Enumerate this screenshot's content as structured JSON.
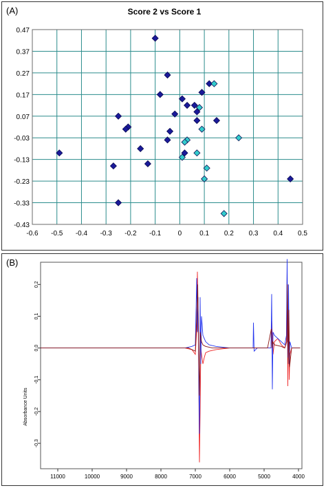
{
  "colors": {
    "grid": "#2a8c8c",
    "frame": "#6a6a6a",
    "group1_fill": "#1a1a9a",
    "group2_fill": "#33cccc",
    "spectrum_blue": "#2233ee",
    "spectrum_red": "#ee2222",
    "spectrum_darkred": "#881111"
  },
  "panels": {
    "a_label": "(A)",
    "b_label": "(B)"
  },
  "chart_data": [
    {
      "type": "scatter",
      "title": "Score 2 vs Score 1",
      "xlabel": "",
      "ylabel": "",
      "xlim": [
        -0.6,
        0.5
      ],
      "ylim": [
        -0.43,
        0.47
      ],
      "grid": true,
      "x_ticks": [
        "-0.6",
        "-0.5",
        "-0.4",
        "-0.3",
        "-0.2",
        "-0.1",
        "0",
        "0.1",
        "0.2",
        "0.3",
        "0.4",
        "0.5"
      ],
      "y_ticks": [
        "0.47",
        "0.37",
        "0.27",
        "0.17",
        "0.07",
        "-0.03",
        "-0.13",
        "-0.23",
        "-0.33",
        "-0.43"
      ],
      "series": [
        {
          "group": "dark",
          "points": [
            [
              -0.1,
              0.43
            ],
            [
              -0.05,
              0.26
            ],
            [
              -0.08,
              0.17
            ],
            [
              0.12,
              0.22
            ],
            [
              0.09,
              0.18
            ],
            [
              0.01,
              0.15
            ],
            [
              0.03,
              0.12
            ],
            [
              0.06,
              0.12
            ],
            [
              -0.02,
              0.08
            ],
            [
              0.07,
              0.09
            ],
            [
              0.07,
              0.05
            ],
            [
              0.15,
              0.05
            ],
            [
              -0.25,
              0.07
            ],
            [
              -0.21,
              0.02
            ],
            [
              -0.22,
              0.01
            ],
            [
              -0.04,
              0.0
            ],
            [
              -0.05,
              -0.04
            ],
            [
              -0.16,
              -0.08
            ],
            [
              0.02,
              -0.1
            ],
            [
              -0.49,
              -0.1
            ],
            [
              -0.13,
              -0.15
            ],
            [
              -0.27,
              -0.16
            ],
            [
              -0.25,
              -0.33
            ],
            [
              0.45,
              -0.22
            ]
          ]
        },
        {
          "group": "light",
          "points": [
            [
              0.14,
              0.22
            ],
            [
              0.08,
              0.11
            ],
            [
              0.09,
              0.01
            ],
            [
              0.24,
              -0.03
            ],
            [
              0.03,
              -0.04
            ],
            [
              0.02,
              -0.05
            ],
            [
              0.07,
              -0.1
            ],
            [
              0.01,
              -0.12
            ],
            [
              0.11,
              -0.17
            ],
            [
              0.1,
              -0.22
            ],
            [
              0.18,
              -0.38
            ]
          ]
        }
      ]
    },
    {
      "type": "line",
      "title": "",
      "xlabel": "",
      "ylabel": "Absorbance Units",
      "xlim": [
        11500,
        3900
      ],
      "ylim": [
        -0.38,
        0.27
      ],
      "x_ticks": [
        11000,
        10000,
        9000,
        8000,
        7000,
        6000,
        5000,
        4000
      ],
      "y_ticks": [
        0.2,
        0.1,
        0.0,
        -0.1,
        -0.2,
        -0.3
      ],
      "y_tick_labels": [
        "0.2",
        "0.1",
        "0.0",
        "-0.1",
        "-0.2",
        "-0.3"
      ],
      "series": [
        {
          "color_key": "spectrum_red",
          "x": [
            11500,
            8000,
            7300,
            7100,
            7000,
            6960,
            6940,
            6920,
            6900,
            6880,
            6860,
            6840,
            6820,
            6780,
            6740,
            6700,
            6600,
            6400,
            6000,
            5400,
            5300,
            5200,
            4900,
            4800,
            4780,
            4760,
            4740,
            4700,
            4600,
            4500,
            4400,
            4350,
            4330,
            4310,
            4290,
            4270,
            4250,
            4200,
            4000,
            3950
          ],
          "y": [
            0.0,
            0.0,
            0.0,
            -0.005,
            -0.02,
            0.06,
            0.24,
            0.1,
            -0.1,
            -0.36,
            -0.2,
            0.0,
            -0.02,
            -0.05,
            -0.03,
            -0.015,
            -0.01,
            -0.005,
            0.0,
            0.0,
            0.0,
            0.0,
            0.0,
            0.0,
            0.09,
            0.04,
            -0.02,
            0.02,
            0.03,
            0.01,
            0.0,
            0.02,
            0.25,
            -0.12,
            0.15,
            -0.1,
            -0.02,
            0.0,
            0.0,
            0.0
          ]
        },
        {
          "color_key": "spectrum_blue",
          "x": [
            11500,
            8000,
            7300,
            7100,
            7000,
            6960,
            6940,
            6920,
            6900,
            6880,
            6860,
            6840,
            6820,
            6780,
            6740,
            6700,
            6600,
            6400,
            6000,
            5400,
            5320,
            5310,
            5290,
            5200,
            4900,
            4800,
            4780,
            4760,
            4740,
            4700,
            4600,
            4500,
            4400,
            4350,
            4330,
            4310,
            4290,
            4270,
            4250,
            4200,
            4000,
            3950
          ],
          "y": [
            0.0,
            0.0,
            0.0,
            0.005,
            0.01,
            0.22,
            0.05,
            0.16,
            -0.1,
            -0.27,
            0.16,
            -0.05,
            0.1,
            0.04,
            0.03,
            0.02,
            0.01,
            0.005,
            0.0,
            0.0,
            0.0,
            0.08,
            -0.01,
            0.0,
            0.0,
            0.0,
            0.17,
            -0.13,
            0.05,
            0.04,
            0.03,
            0.02,
            0.01,
            0.04,
            0.28,
            -0.03,
            0.2,
            -0.05,
            0.02,
            0.0,
            0.0,
            0.0
          ]
        },
        {
          "color_key": "spectrum_darkred",
          "x": [
            11500,
            8000,
            7200,
            7000,
            6960,
            6930,
            6900,
            6880,
            6860,
            6820,
            6780,
            6700,
            6500,
            6000,
            4900,
            4790,
            4770,
            4750,
            4700,
            4500,
            4400,
            4340,
            4320,
            4300,
            4280,
            4260,
            4200,
            4000,
            3950
          ],
          "y": [
            0.0,
            0.0,
            0.0,
            -0.01,
            0.1,
            0.2,
            -0.05,
            -0.15,
            0.05,
            0.02,
            0.01,
            0.005,
            0.0,
            0.0,
            0.0,
            0.06,
            0.0,
            0.02,
            0.01,
            0.005,
            0.0,
            0.02,
            0.2,
            -0.05,
            0.12,
            -0.06,
            0.0,
            0.0,
            0.0
          ]
        }
      ]
    }
  ]
}
